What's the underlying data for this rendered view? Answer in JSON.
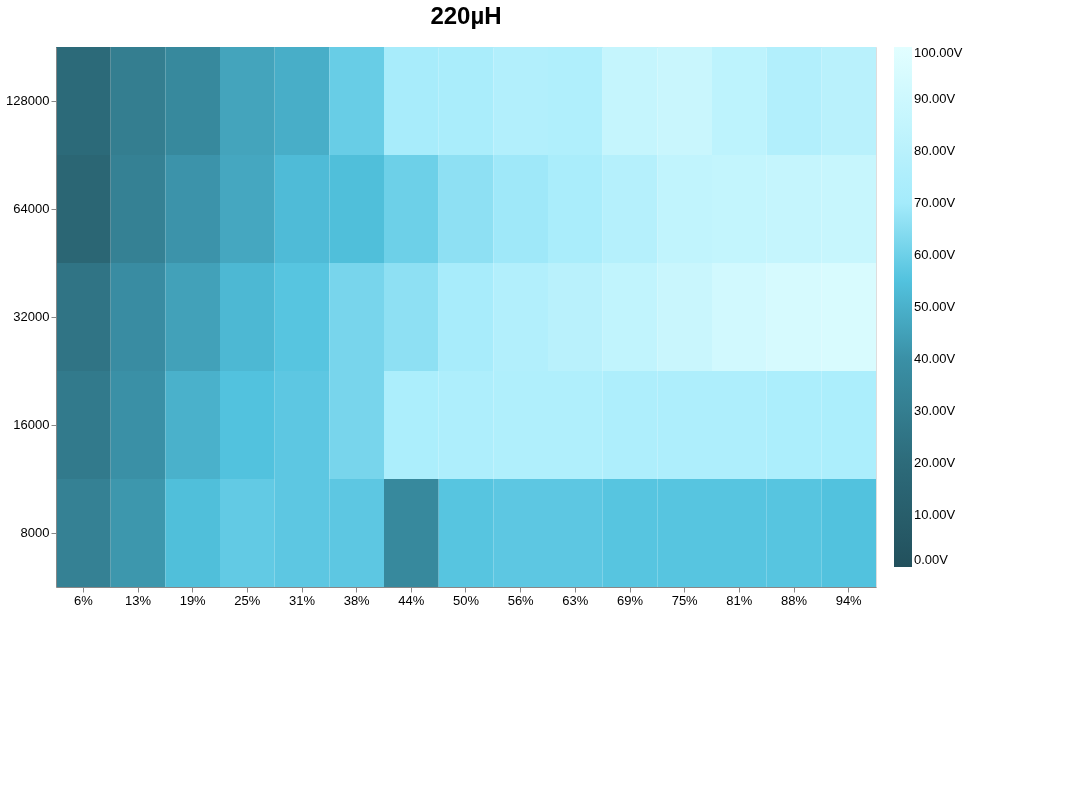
{
  "chart_data": {
    "type": "heatmap",
    "title": "220µH",
    "categories": [
      "6%",
      "13%",
      "19%",
      "25%",
      "31%",
      "38%",
      "44%",
      "50%",
      "56%",
      "63%",
      "69%",
      "75%",
      "81%",
      "88%",
      "94%"
    ],
    "y_categories": [
      "128000",
      "64000",
      "32000",
      "16000",
      "8000"
    ],
    "cells": [
      [
        19,
        30,
        36,
        46,
        49,
        59,
        72,
        73,
        77,
        76,
        86,
        88,
        82,
        77,
        80
      ],
      [
        16,
        32,
        41,
        47,
        53,
        54,
        60,
        66,
        69,
        73,
        78,
        84,
        85,
        86,
        87
      ],
      [
        25,
        38,
        45,
        52,
        56,
        62,
        66,
        72,
        77,
        80,
        84,
        88,
        92,
        94,
        95
      ],
      [
        28,
        40,
        50,
        55,
        57,
        62,
        74,
        75,
        76,
        76,
        75,
        75,
        75,
        74,
        74
      ],
      [
        32,
        42,
        54,
        58,
        57,
        57,
        36,
        56,
        57,
        57,
        56,
        56,
        56,
        56,
        55
      ]
    ],
    "clim": [
      0,
      100
    ],
    "cticks": [
      {
        "value": 0,
        "label": "0.00V"
      },
      {
        "value": 10,
        "label": "10.00V"
      },
      {
        "value": 20,
        "label": "20.00V"
      },
      {
        "value": 30,
        "label": "30.00V"
      },
      {
        "value": 40,
        "label": "40.00V"
      },
      {
        "value": 50,
        "label": "50.00V"
      },
      {
        "value": 60,
        "label": "60.00V"
      },
      {
        "value": 70,
        "label": "70.00V"
      },
      {
        "value": 80,
        "label": "80.00V"
      },
      {
        "value": 90,
        "label": "90.00V"
      },
      {
        "value": 100,
        "label": "100.00V"
      }
    ]
  }
}
